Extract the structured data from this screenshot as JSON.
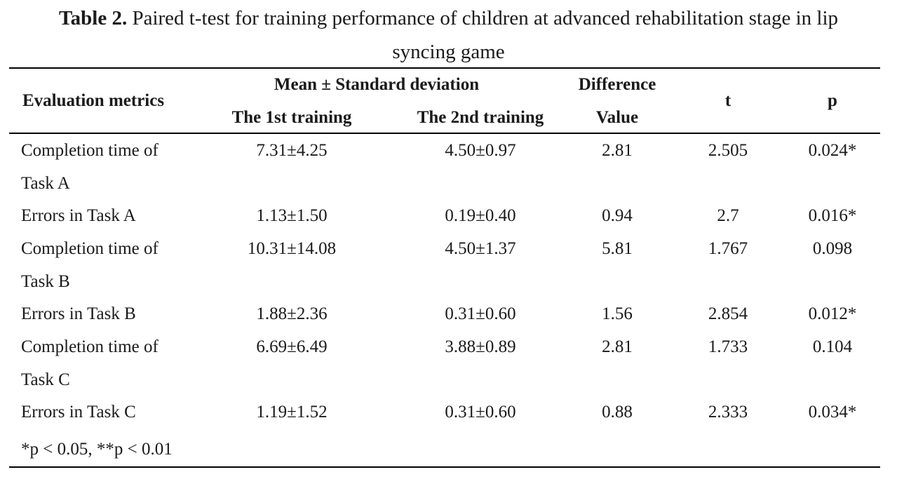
{
  "caption": {
    "label": "Table 2.",
    "text_line1": " Paired t-test for training performance of children at advanced rehabilitation stage in lip",
    "text_line2": "syncing game"
  },
  "header": {
    "metrics": "Evaluation metrics",
    "mean_sd": "Mean ± Standard deviation",
    "first": "The 1st training",
    "second": "The 2nd training",
    "difference_line1": "Difference",
    "difference_line2": "Value",
    "t": "t",
    "p": "p"
  },
  "rows": [
    {
      "metric_line1": "Completion time of",
      "metric_line2": "Task A",
      "first": "7.31±4.25",
      "second": "4.50±0.97",
      "diff": "2.81",
      "t": "2.505",
      "p": "0.024*"
    },
    {
      "metric_line1": "Errors in Task A",
      "metric_line2": "",
      "first": "1.13±1.50",
      "second": "0.19±0.40",
      "diff": "0.94",
      "t": "2.7",
      "p": "0.016*"
    },
    {
      "metric_line1": "Completion time of",
      "metric_line2": "Task B",
      "first": "10.31±14.08",
      "second": "4.50±1.37",
      "diff": "5.81",
      "t": "1.767",
      "p": "0.098"
    },
    {
      "metric_line1": "Errors in Task B",
      "metric_line2": "",
      "first": "1.88±2.36",
      "second": "0.31±0.60",
      "diff": "1.56",
      "t": "2.854",
      "p": "0.012*"
    },
    {
      "metric_line1": "Completion time of",
      "metric_line2": "Task C",
      "first": "6.69±6.49",
      "second": "3.88±0.89",
      "diff": "2.81",
      "t": "1.733",
      "p": "0.104"
    },
    {
      "metric_line1": "Errors in Task C",
      "metric_line2": "",
      "first": "1.19±1.52",
      "second": "0.31±0.60",
      "diff": "0.88",
      "t": "2.333",
      "p": "0.034*"
    }
  ],
  "footnote": "*p < 0.05, **p < 0.01"
}
